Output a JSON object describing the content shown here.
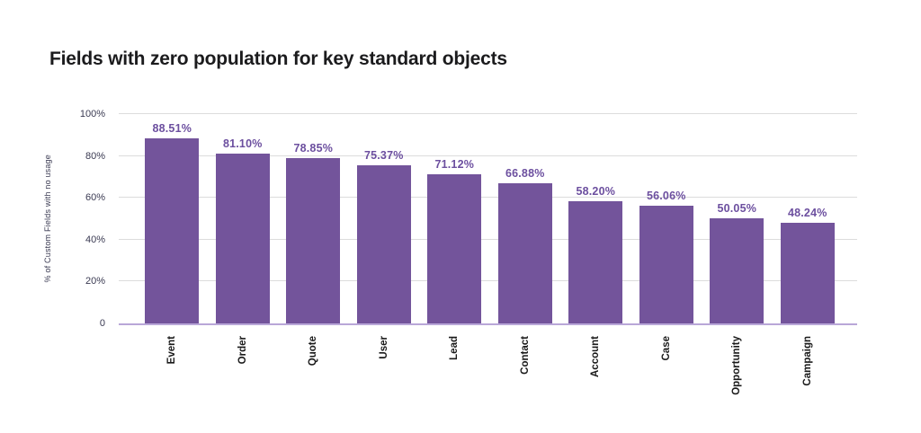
{
  "colors": {
    "background": "#ffffff",
    "bar": "#73549b",
    "data_label": "#6c4f9f",
    "baseline": "#b9a7d8",
    "gridline": "#dcdcdc",
    "axis_text": "#3a3a52",
    "category_text": "#1a1a1a",
    "title_text": "#1b1b1d"
  },
  "chart_data": {
    "type": "bar",
    "title": "Fields with zero population for key standard objects",
    "categories": [
      "Event",
      "Order",
      "Quote",
      "User",
      "Lead",
      "Contact",
      "Account",
      "Case",
      "Opportunity",
      "Campaign"
    ],
    "values": [
      88.51,
      81.1,
      78.85,
      75.37,
      71.12,
      66.88,
      58.2,
      56.06,
      50.05,
      48.24
    ],
    "value_labels": [
      "88.51%",
      "81.10%",
      "78.85%",
      "75.37%",
      "71.12%",
      "66.88%",
      "58.20%",
      "56.06%",
      "50.05%",
      "48.24%"
    ],
    "xlabel": "",
    "ylabel": "% of Custom Fields with no usage",
    "ylim": [
      0,
      100
    ],
    "yticks": [
      {
        "value": 100,
        "label": "100%"
      },
      {
        "value": 80,
        "label": "80%"
      },
      {
        "value": 60,
        "label": "60%"
      },
      {
        "value": 40,
        "label": "40%"
      },
      {
        "value": 20,
        "label": "20%"
      },
      {
        "value": 0,
        "label": "0"
      }
    ],
    "grid": true,
    "legend": "none",
    "bar_orientation": "vertical",
    "x_label_rotation_deg": 90
  }
}
